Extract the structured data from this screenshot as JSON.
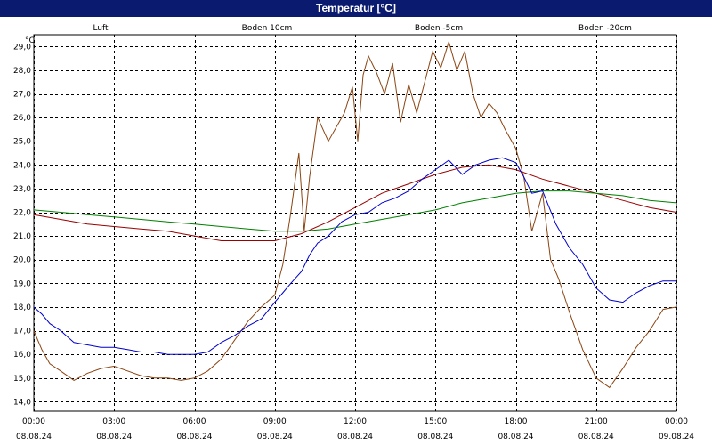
{
  "window": {
    "title": "Temperatur [°C]"
  },
  "chart_data": {
    "type": "line",
    "title": "Temperatur [°C]",
    "ylabel": "°C",
    "ylim": [
      14.0,
      29.0
    ],
    "y_ticks": [
      "29,0",
      "28,0",
      "27,0",
      "26,0",
      "25,0",
      "24,0",
      "23,0",
      "22,0",
      "21,0",
      "20,0",
      "19,0",
      "18,0",
      "17,0",
      "16,0",
      "15,0",
      "14,0"
    ],
    "x_ticks": [
      {
        "time": "00:00",
        "date": "08.08.24"
      },
      {
        "time": "03:00",
        "date": "08.08.24"
      },
      {
        "time": "06:00",
        "date": "08.08.24"
      },
      {
        "time": "09:00",
        "date": "08.08.24"
      },
      {
        "time": "12:00",
        "date": "08.08.24"
      },
      {
        "time": "15:00",
        "date": "08.08.24"
      },
      {
        "time": "18:00",
        "date": "08.08.24"
      },
      {
        "time": "21:00",
        "date": "08.08.24"
      },
      {
        "time": "00:00",
        "date": "09.08.24"
      }
    ],
    "x_range_hours": [
      0,
      24
    ],
    "grid": true,
    "legend_position": "top",
    "series": [
      {
        "name": "Luft",
        "color": "#0000cc",
        "x": [
          0,
          0.3,
          0.6,
          1,
          1.5,
          2,
          2.5,
          3,
          3.5,
          4,
          4.5,
          5,
          5.5,
          6,
          6.5,
          7,
          7.5,
          8,
          8.5,
          9,
          9.3,
          9.6,
          10,
          10.3,
          10.6,
          11,
          11.5,
          12,
          12.5,
          13,
          13.5,
          14,
          14.5,
          15,
          15.5,
          16,
          16.5,
          17,
          17.5,
          18,
          18.3,
          18.6,
          19,
          19.5,
          20,
          20.5,
          21,
          21.5,
          22,
          22.5,
          23,
          23.5,
          24
        ],
        "values": [
          18.0,
          17.7,
          17.3,
          17.0,
          16.5,
          16.4,
          16.3,
          16.3,
          16.2,
          16.1,
          16.1,
          16.0,
          16.0,
          16.0,
          16.1,
          16.5,
          16.8,
          17.2,
          17.5,
          18.2,
          18.6,
          19.0,
          19.5,
          20.2,
          20.7,
          21.0,
          21.6,
          21.9,
          22.0,
          22.4,
          22.6,
          22.9,
          23.4,
          23.8,
          24.2,
          23.6,
          24.0,
          24.2,
          24.3,
          24.1,
          23.5,
          22.8,
          22.9,
          21.5,
          20.5,
          19.8,
          18.8,
          18.3,
          18.2,
          18.6,
          18.9,
          19.1,
          19.1
        ]
      },
      {
        "name": "Boden 10cm",
        "color": "#8b4513",
        "x": [
          0,
          0.3,
          0.6,
          1,
          1.5,
          2,
          2.5,
          3,
          3.5,
          4,
          4.5,
          5,
          5.5,
          6,
          6.5,
          7,
          7.5,
          8,
          8.5,
          9,
          9.3,
          9.6,
          9.9,
          10.1,
          10.3,
          10.6,
          11,
          11.3,
          11.6,
          11.9,
          12.1,
          12.3,
          12.5,
          12.8,
          13.1,
          13.4,
          13.7,
          14,
          14.3,
          14.6,
          14.9,
          15.2,
          15.5,
          15.8,
          16.1,
          16.4,
          16.7,
          17,
          17.3,
          17.6,
          18,
          18.3,
          18.6,
          19,
          19.3,
          19.6,
          20,
          20.5,
          21,
          21.5,
          22,
          22.5,
          23,
          23.5,
          24
        ],
        "values": [
          17.0,
          16.2,
          15.6,
          15.3,
          14.9,
          15.2,
          15.4,
          15.5,
          15.3,
          15.1,
          15.0,
          15.0,
          14.9,
          15.0,
          15.3,
          15.8,
          16.6,
          17.4,
          18.0,
          18.5,
          19.8,
          22.0,
          24.5,
          21.2,
          23.5,
          26.0,
          25.0,
          25.6,
          26.2,
          27.3,
          25.0,
          27.8,
          28.6,
          27.9,
          27.0,
          28.3,
          25.8,
          27.4,
          26.2,
          27.5,
          28.8,
          28.1,
          29.2,
          28.0,
          28.8,
          27.0,
          26.0,
          26.6,
          26.2,
          25.5,
          24.7,
          23.5,
          21.2,
          22.8,
          20.0,
          19.2,
          17.8,
          16.2,
          15.0,
          14.6,
          15.4,
          16.3,
          17.0,
          17.9,
          18.0
        ]
      },
      {
        "name": "Boden -5cm",
        "color": "#990000",
        "x": [
          0,
          1,
          2,
          3,
          4,
          5,
          6,
          7,
          8,
          9,
          10,
          11,
          12,
          13,
          14,
          15,
          16,
          17,
          18,
          19,
          20,
          21,
          22,
          23,
          24
        ],
        "values": [
          21.9,
          21.7,
          21.5,
          21.4,
          21.3,
          21.2,
          21.0,
          20.8,
          20.8,
          20.8,
          21.1,
          21.6,
          22.2,
          22.8,
          23.2,
          23.6,
          23.9,
          24.0,
          23.8,
          23.4,
          23.1,
          22.8,
          22.5,
          22.2,
          22.0
        ]
      },
      {
        "name": "Boden -20cm",
        "color": "#008000",
        "x": [
          0,
          1,
          2,
          3,
          4,
          5,
          6,
          7,
          8,
          9,
          10,
          11,
          12,
          13,
          14,
          15,
          16,
          17,
          18,
          19,
          20,
          21,
          22,
          23,
          24
        ],
        "values": [
          22.1,
          22.0,
          21.9,
          21.8,
          21.7,
          21.6,
          21.5,
          21.4,
          21.3,
          21.2,
          21.2,
          21.3,
          21.5,
          21.7,
          21.9,
          22.1,
          22.4,
          22.6,
          22.8,
          22.9,
          22.9,
          22.8,
          22.7,
          22.5,
          22.4
        ]
      }
    ]
  }
}
